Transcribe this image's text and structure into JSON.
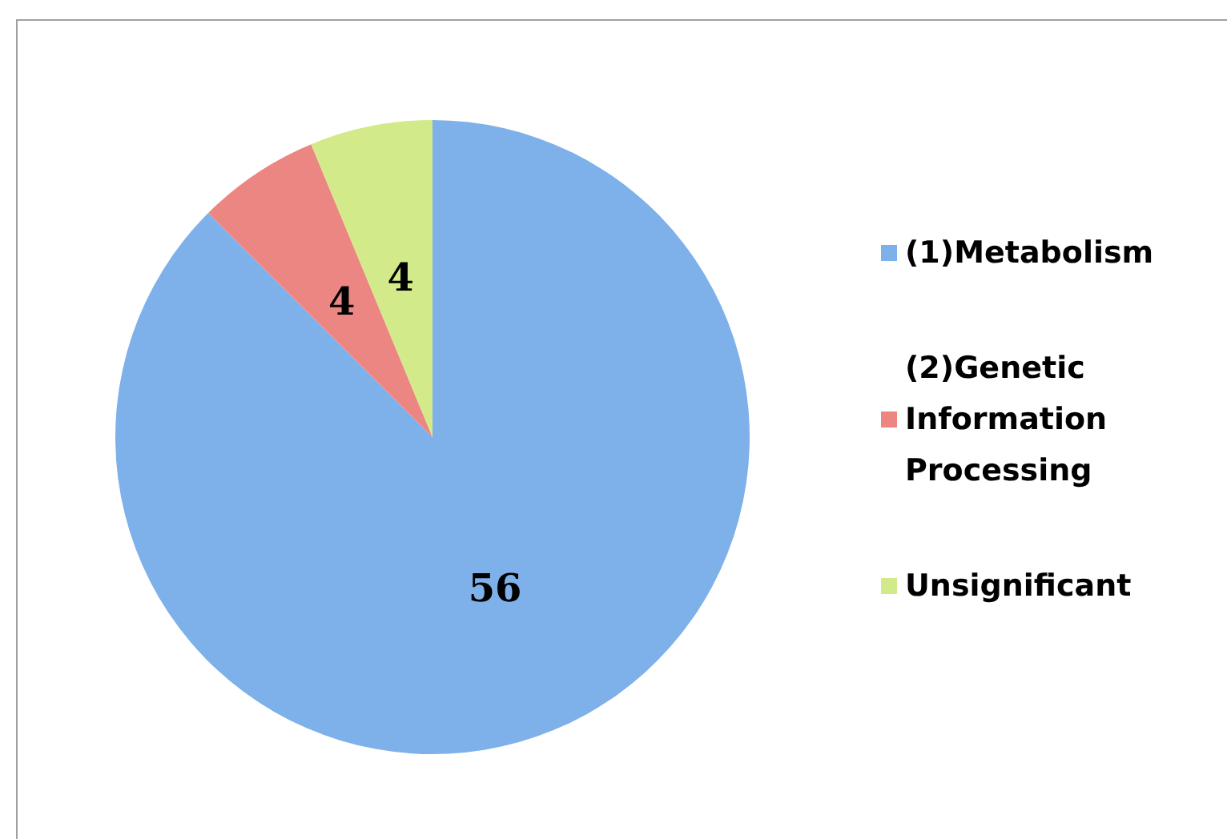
{
  "chart_data": {
    "type": "pie",
    "categories": [
      "(1)Metabolism",
      "(2)Genetic Information Processing",
      "Unsignificant"
    ],
    "values": [
      56,
      4,
      4
    ],
    "colors": [
      "#7eb0ea",
      "#ec8682",
      "#d3ea8a"
    ],
    "data_labels": true,
    "legend": "right"
  }
}
